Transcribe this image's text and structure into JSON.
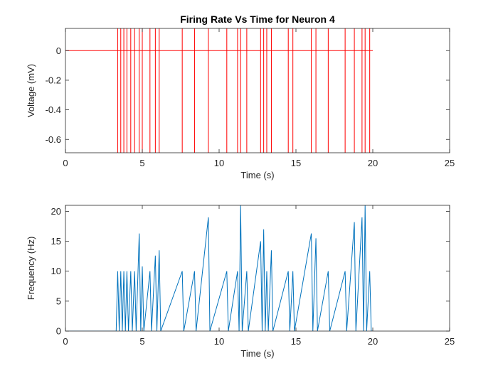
{
  "chart_data": [
    {
      "type": "line",
      "title": "Firing Rate Vs Time for Neuron 4",
      "xlabel": "Time (s)",
      "ylabel": "Voltage (mV)",
      "color": "#ff0000",
      "x": [
        0,
        3.4,
        3.4,
        3.4,
        3.4,
        3.6,
        3.6,
        3.6,
        3.6,
        3.8,
        3.8,
        3.8,
        3.8,
        4.0,
        4.0,
        4.0,
        4.0,
        4.25,
        4.25,
        4.25,
        4.25,
        4.5,
        4.5,
        4.5,
        4.5,
        4.8,
        4.8,
        4.8,
        4.8,
        5.0,
        5.0,
        5.0,
        5.0,
        5.5,
        5.5,
        5.5,
        5.5,
        5.85,
        5.85,
        5.85,
        5.85,
        6.1,
        6.1,
        6.1,
        6.1,
        7.6,
        7.6,
        7.6,
        7.6,
        8.4,
        8.4,
        8.4,
        8.4,
        9.3,
        9.3,
        9.3,
        9.3,
        10.5,
        10.5,
        10.5,
        10.5,
        11.2,
        11.2,
        11.2,
        11.2,
        11.4,
        11.4,
        11.4,
        11.4,
        11.8,
        11.8,
        11.8,
        11.8,
        12.7,
        12.7,
        12.7,
        12.7,
        12.9,
        12.9,
        12.9,
        12.9,
        13.1,
        13.1,
        13.1,
        13.1,
        13.4,
        13.4,
        13.4,
        13.4,
        14.5,
        14.5,
        14.5,
        14.5,
        14.8,
        14.8,
        14.8,
        14.8,
        16.0,
        16.0,
        16.0,
        16.0,
        16.3,
        16.3,
        16.3,
        16.3,
        17.1,
        17.1,
        17.1,
        17.1,
        18.2,
        18.2,
        18.2,
        18.2,
        18.8,
        18.8,
        18.8,
        18.8,
        19.3,
        19.3,
        19.3,
        19.3,
        19.5,
        19.5,
        19.5,
        19.5,
        19.8,
        19.8,
        19.8,
        19.8,
        20
      ],
      "values": [
        0,
        0,
        0.15,
        -0.69,
        0,
        0,
        0.15,
        -0.69,
        0,
        0,
        0.15,
        -0.69,
        0,
        0,
        0.15,
        -0.69,
        0,
        0,
        0.15,
        -0.69,
        0,
        0,
        0.15,
        -0.69,
        0,
        0,
        0.15,
        -0.69,
        0,
        0,
        0.15,
        -0.69,
        0,
        0,
        0.15,
        -0.69,
        0,
        0,
        0.15,
        -0.69,
        0,
        0,
        0.15,
        -0.69,
        0,
        0,
        0.15,
        -0.69,
        0,
        0,
        0.15,
        -0.69,
        0,
        0,
        0.15,
        -0.69,
        0,
        0,
        0.15,
        -0.69,
        0,
        0,
        0.15,
        -0.69,
        0,
        0,
        0.15,
        -0.69,
        0,
        0,
        0.15,
        -0.69,
        0,
        0,
        0.15,
        -0.69,
        0,
        0,
        0.15,
        -0.69,
        0,
        0,
        0.15,
        -0.69,
        0,
        0,
        0.15,
        -0.69,
        0,
        0,
        0.15,
        -0.69,
        0,
        0,
        0.15,
        -0.69,
        0,
        0,
        0.15,
        -0.69,
        0,
        0,
        0.15,
        -0.69,
        0,
        0,
        0.15,
        -0.69,
        0,
        0,
        0.15,
        -0.69,
        0,
        0,
        0.15,
        -0.69,
        0,
        0,
        0.15,
        -0.69,
        0,
        0,
        0.15,
        -0.69,
        0,
        0,
        0.15,
        -0.69,
        0,
        0
      ],
      "xlim": [
        0,
        25
      ],
      "xticks": [
        0,
        5,
        10,
        15,
        20,
        25
      ],
      "ylim": [
        -0.69,
        0.15
      ],
      "yticks": [
        -0.6,
        -0.4,
        -0.2,
        0
      ]
    },
    {
      "type": "line",
      "xlabel": "Time (s)",
      "ylabel": "Frequency (Hz)",
      "color": "#0072bd",
      "x": [
        0,
        3.3,
        3.4,
        3.5,
        3.6,
        3.7,
        3.8,
        3.9,
        4.0,
        4.1,
        4.25,
        4.35,
        4.5,
        4.6,
        4.8,
        4.9,
        5.0,
        5.1,
        5.5,
        5.6,
        5.85,
        5.95,
        6.1,
        6.2,
        7.6,
        7.7,
        8.4,
        8.5,
        9.3,
        9.4,
        10.5,
        10.6,
        11.2,
        11.3,
        11.4,
        11.5,
        11.8,
        11.9,
        12.7,
        12.8,
        12.9,
        13.0,
        13.1,
        13.2,
        13.4,
        13.5,
        14.5,
        14.6,
        14.8,
        14.9,
        16.0,
        16.1,
        16.3,
        16.4,
        17.1,
        17.2,
        18.2,
        18.3,
        18.8,
        18.9,
        19.3,
        19.4,
        19.5,
        19.6,
        19.8,
        19.9,
        20
      ],
      "values": [
        0,
        0,
        10,
        0,
        10,
        0,
        10,
        0,
        10,
        0,
        10,
        0,
        10,
        0,
        16.3,
        0,
        10.8,
        0,
        10,
        0,
        12.6,
        0,
        13.5,
        0,
        10,
        0,
        10,
        0,
        19,
        0,
        10,
        0,
        10,
        0,
        21,
        0,
        10,
        0,
        15,
        0,
        17,
        0,
        10,
        0,
        13.5,
        0,
        10,
        0,
        10,
        0,
        16.3,
        0,
        15.5,
        0,
        10,
        0,
        10,
        0,
        18.2,
        0,
        19,
        0,
        21,
        0,
        10,
        0,
        0
      ],
      "xlim": [
        0,
        25
      ],
      "xticks": [
        0,
        5,
        10,
        15,
        20,
        25
      ],
      "ylim": [
        0,
        21
      ],
      "yticks": [
        0,
        5,
        10,
        15,
        20
      ]
    }
  ]
}
